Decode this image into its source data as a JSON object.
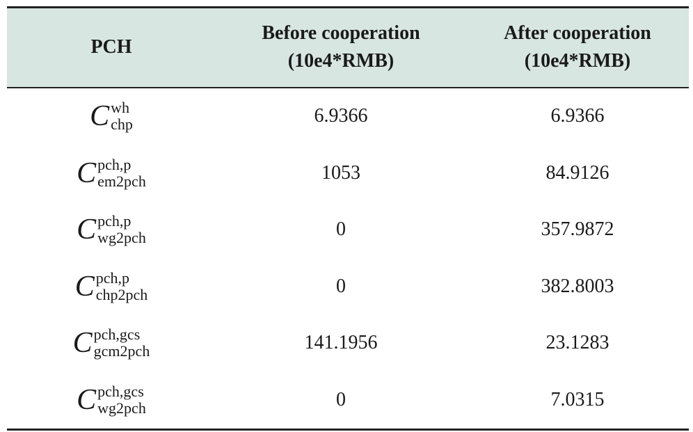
{
  "table": {
    "header": [
      "PCH",
      [
        "Before cooperation",
        "(10e4*RMB)"
      ],
      [
        "After cooperation",
        "(10e4*RMB)"
      ]
    ],
    "rows": [
      [
        {
          "symbol": "C",
          "sup": "wh",
          "sub": "chp"
        },
        "6.9366",
        "6.9366"
      ],
      [
        {
          "symbol": "C",
          "sup": "pch,p",
          "sub": "em2pch"
        },
        "1053",
        "84.9126"
      ],
      [
        {
          "symbol": "C",
          "sup": "pch,p",
          "sub": "wg2pch"
        },
        "0",
        "357.9872"
      ],
      [
        {
          "symbol": "C",
          "sup": "pch,p",
          "sub": "chp2pch"
        },
        "0",
        "382.8003"
      ],
      [
        {
          "symbol": "C",
          "sup": "pch,gcs",
          "sub": "gcm2pch"
        },
        "141.1956",
        "23.1283"
      ],
      [
        {
          "symbol": "C",
          "sup": "pch,gcs",
          "sub": "wg2pch"
        },
        "0",
        "7.0315"
      ]
    ]
  }
}
